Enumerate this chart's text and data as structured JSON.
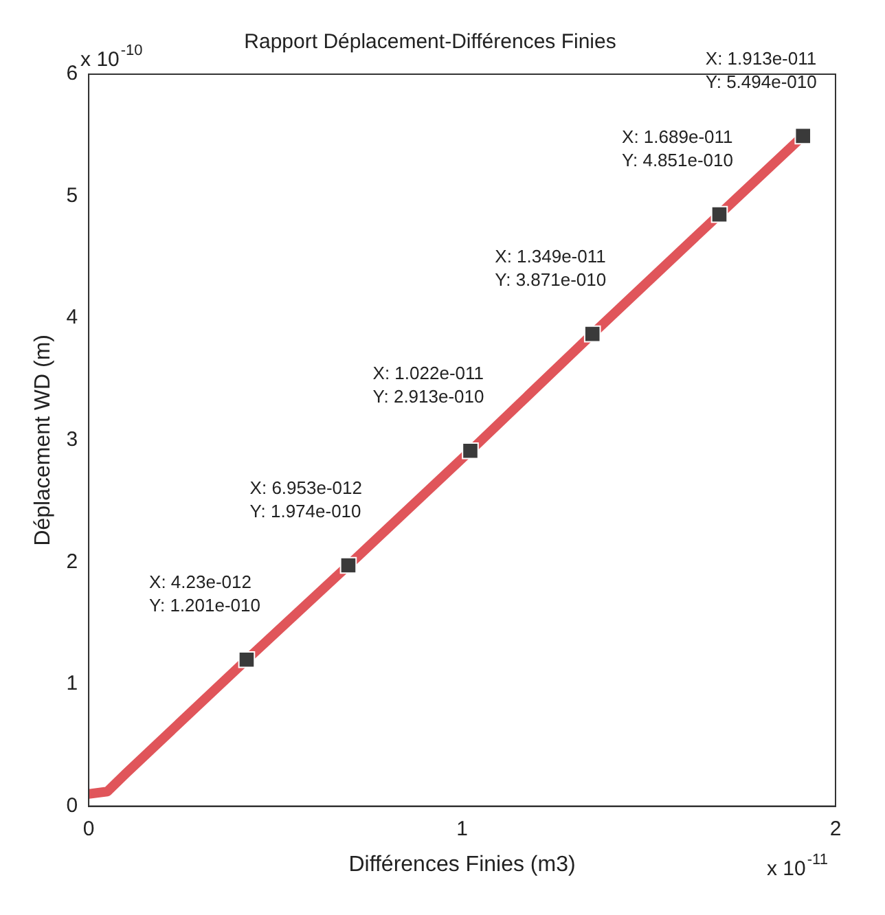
{
  "chart_data": {
    "type": "line",
    "title": "Rapport Déplacement-Différences Finies",
    "xlabel": "Différences Finies (m3)",
    "ylabel": "Déplacement WD (m)",
    "xlim": [
      0,
      2
    ],
    "xticks": [
      0,
      1,
      2
    ],
    "ylim": [
      0,
      6
    ],
    "yticks": [
      0,
      1,
      2,
      3,
      4,
      5,
      6
    ],
    "legend": false,
    "series": [
      {
        "color": "#e0555a",
        "marker": "none",
        "x": [
          0,
          0.05,
          0.1,
          0.423,
          0.6953,
          1.022,
          1.349,
          1.689,
          1.913
        ],
        "values": [
          0.1,
          0.12,
          0.27,
          1.201,
          1.974,
          2.913,
          3.871,
          4.851,
          5.494
        ]
      },
      {
        "type": "scatter",
        "color": "#3a3a3a",
        "marker": "square",
        "x": [
          0.423,
          0.6953,
          1.022,
          1.349,
          1.689,
          1.913
        ],
        "values": [
          1.201,
          1.974,
          2.913,
          3.871,
          4.851,
          5.494
        ]
      }
    ],
    "annotations": [
      "x 10$^{-10}$",
      "x 10$^{-11}$",
      {
        "text": "X: 4.23e-012\nY: 1.201e-010",
        "x": 0.423,
        "y": 1.201
      },
      {
        "text": "X: 6.953e-012\nY: 1.974e-010",
        "x": 0.6953,
        "y": 1.974
      },
      {
        "text": "X: 1.022e-011\nY: 2.913e-010",
        "x": 1.022,
        "y": 2.913
      },
      {
        "text": "X: 1.349e-011\nY: 3.871e-010",
        "x": 1.349,
        "y": 3.871
      },
      {
        "text": "X: 1.689e-011\nY: 4.851e-010",
        "x": 1.689,
        "y": 4.851
      },
      {
        "text": "X: 1.913e-011\nY: 5.494e-010",
        "x": 1.913,
        "y": 5.494
      }
    ]
  }
}
